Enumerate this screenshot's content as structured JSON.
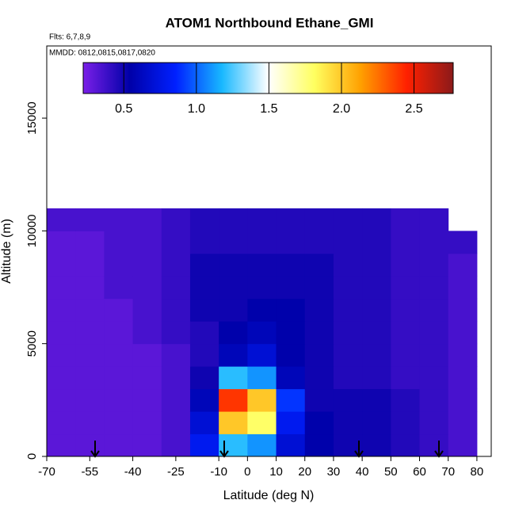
{
  "chart_data": {
    "type": "heatmap",
    "title": "ATOM1 Northbound Ethane_GMI",
    "annotations": [
      "Flts: 6,7,8,9",
      "MMDD: 0812,0815,0817,0820"
    ],
    "xlabel": "Latitude (deg N)",
    "ylabel": "Altitude (m)",
    "xlim": [
      -70,
      85
    ],
    "ylim": [
      0,
      18200
    ],
    "xticks": [
      -70,
      -55,
      -40,
      -25,
      -10,
      0,
      10,
      20,
      30,
      40,
      50,
      60,
      70,
      80
    ],
    "yticks": [
      0,
      5000,
      10000,
      15000
    ],
    "x_edges": [
      -70,
      -60,
      -50,
      -40,
      -30,
      -20,
      -10,
      0,
      10,
      20,
      30,
      40,
      50,
      60,
      70,
      80
    ],
    "y_edges": [
      0,
      1000,
      2000,
      3000,
      4000,
      5000,
      6000,
      7000,
      8000,
      9000,
      10000,
      11000
    ],
    "values": [
      [
        0.3,
        0.3,
        0.3,
        0.3,
        0.35,
        0.8,
        1.2,
        1.1,
        0.7,
        0.55,
        0.5,
        0.5,
        0.45,
        0.4,
        0.35
      ],
      [
        0.3,
        0.3,
        0.3,
        0.3,
        0.35,
        0.7,
        2.0,
        1.8,
        0.8,
        0.55,
        0.5,
        0.5,
        0.45,
        0.4,
        0.35
      ],
      [
        0.3,
        0.3,
        0.3,
        0.3,
        0.35,
        0.6,
        2.4,
        2.0,
        0.9,
        0.5,
        0.5,
        0.5,
        0.45,
        0.4,
        0.35
      ],
      [
        0.3,
        0.3,
        0.3,
        0.3,
        0.35,
        0.5,
        1.2,
        1.1,
        0.6,
        0.5,
        0.45,
        0.45,
        0.4,
        0.4,
        0.35
      ],
      [
        0.3,
        0.3,
        0.3,
        0.3,
        0.35,
        0.45,
        0.6,
        0.7,
        0.55,
        0.5,
        0.45,
        0.45,
        0.4,
        0.4,
        0.35
      ],
      [
        0.3,
        0.3,
        0.3,
        0.35,
        0.4,
        0.45,
        0.55,
        0.6,
        0.55,
        0.5,
        0.45,
        0.45,
        0.4,
        0.4,
        0.35
      ],
      [
        0.3,
        0.3,
        0.3,
        0.35,
        0.4,
        0.5,
        0.5,
        0.55,
        0.55,
        0.5,
        0.45,
        0.45,
        0.4,
        0.4,
        0.35
      ],
      [
        0.3,
        0.3,
        0.35,
        0.35,
        0.4,
        0.5,
        0.5,
        0.5,
        0.5,
        0.5,
        0.45,
        0.45,
        0.4,
        0.4,
        0.35
      ],
      [
        0.3,
        0.3,
        0.35,
        0.35,
        0.4,
        0.5,
        0.5,
        0.5,
        0.5,
        0.5,
        0.45,
        0.45,
        0.4,
        0.4,
        0.35
      ],
      [
        0.3,
        0.3,
        0.35,
        0.35,
        0.4,
        0.45,
        0.45,
        0.45,
        0.45,
        0.45,
        0.45,
        0.45,
        0.4,
        0.4,
        0.4
      ],
      [
        0.35,
        0.35,
        0.35,
        0.35,
        0.4,
        0.45,
        0.45,
        0.45,
        0.45,
        0.45,
        0.45,
        0.45,
        0.4,
        0.4,
        null
      ]
    ],
    "colorbar_lim": [
      0.22,
      2.77
    ],
    "colorbar_ticks": [
      0.5,
      {
        "value": 1,
        "label": "1.0"
      },
      1.5,
      {
        "value": 2,
        "label": "2.0"
      },
      2.5
    ],
    "colormap": [
      "#7a1fe8",
      "#0000a8",
      "#0020ff",
      "#18b8ff",
      "#ffffff",
      "#ffff60",
      "#ffa000",
      "#ff2000",
      "#8b1a1a"
    ]
  }
}
